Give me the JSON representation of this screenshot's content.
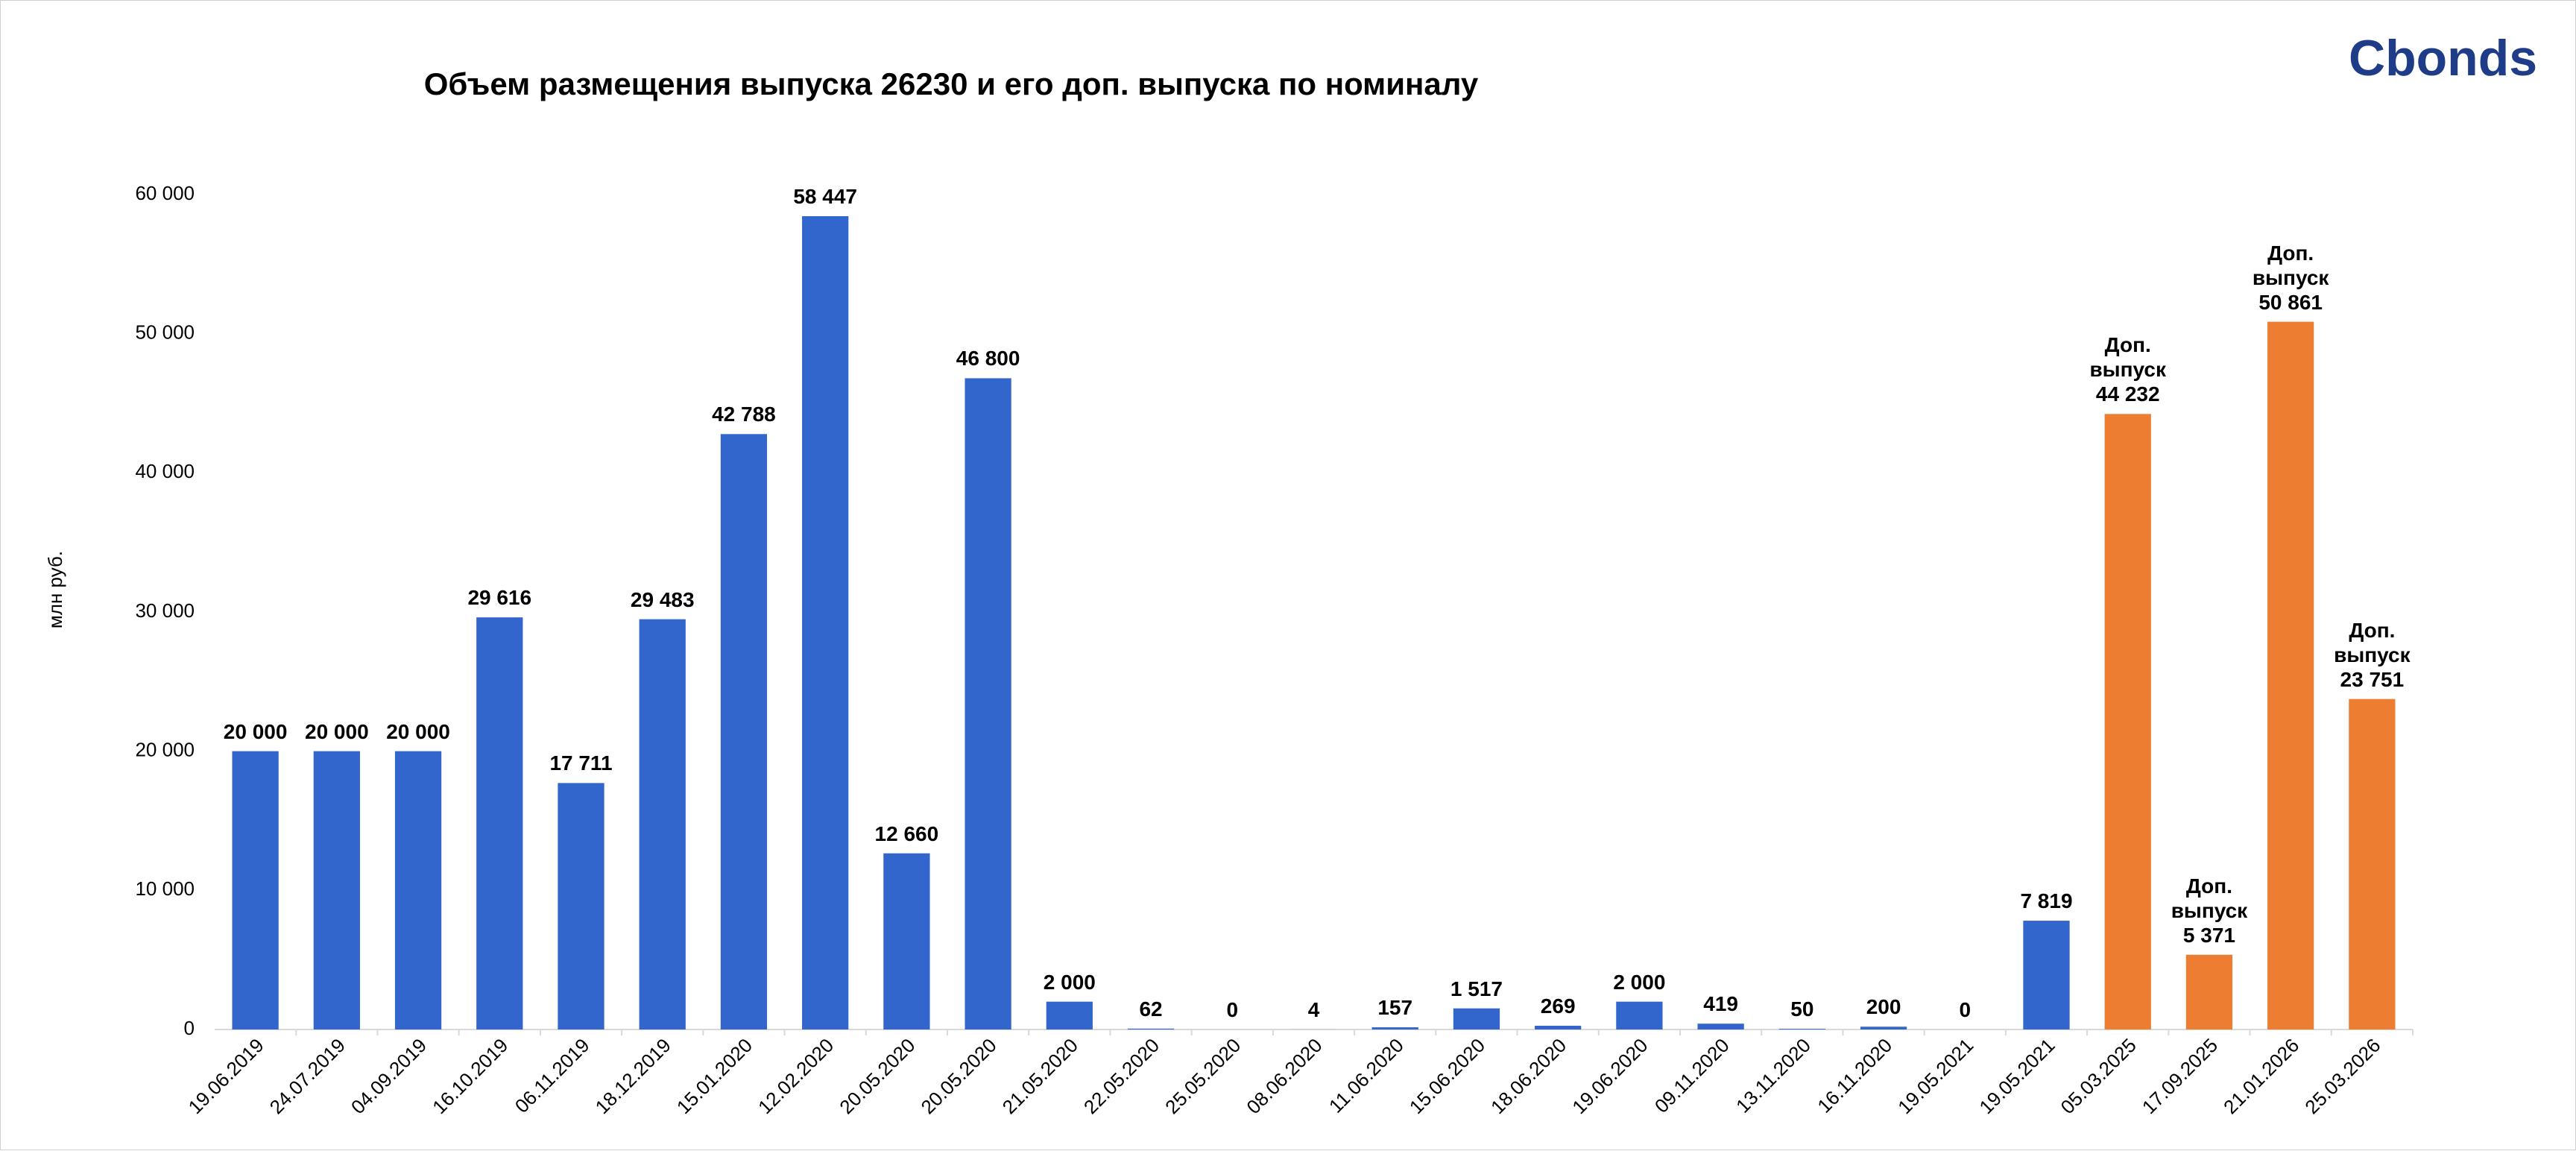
{
  "logo": "Cbonds",
  "chart_data": {
    "type": "bar",
    "title": "Объем размещения выпуска 26230 и его доп. выпуска по номиналу",
    "y_label": "млн руб.",
    "categories": [
      "19.06.2019",
      "24.07.2019",
      "04.09.2019",
      "16.10.2019",
      "06.11.2019",
      "18.12.2019",
      "15.01.2020",
      "12.02.2020",
      "20.05.2020",
      "20.05.2020",
      "21.05.2020",
      "22.05.2020",
      "25.05.2020",
      "08.06.2020",
      "11.06.2020",
      "15.06.2020",
      "18.06.2020",
      "19.06.2020",
      "09.11.2020",
      "13.11.2020",
      "16.11.2020",
      "19.05.2021",
      "19.05.2021",
      "05.03.2025",
      "17.09.2025",
      "21.01.2026",
      "25.03.2026"
    ],
    "values": [
      20000,
      20000,
      20000,
      29616,
      17711,
      29483,
      42788,
      58447,
      12660,
      46800,
      2000,
      62,
      0,
      4,
      157,
      1517,
      269,
      2000,
      419,
      50,
      200,
      0,
      7819,
      44232,
      5371,
      50861,
      23751
    ],
    "value_labels": [
      "20 000",
      "20 000",
      "20 000",
      "29 616",
      "17 711",
      "29 483",
      "42 788",
      "58 447",
      "12 660",
      "46 800",
      "2 000",
      "62",
      "0",
      "4",
      "157",
      "1 517",
      "269",
      "2 000",
      "419",
      "50",
      "200",
      "0",
      "7 819",
      "Доп.\nвыпуск\n44 232",
      "Доп.\nвыпуск\n5 371",
      "Доп.\nвыпуск\n50 861",
      "Доп.\nвыпуск\n23 751"
    ],
    "colors": [
      "#3366cc",
      "#3366cc",
      "#3366cc",
      "#3366cc",
      "#3366cc",
      "#3366cc",
      "#3366cc",
      "#3366cc",
      "#3366cc",
      "#3366cc",
      "#3366cc",
      "#3366cc",
      "#3366cc",
      "#3366cc",
      "#3366cc",
      "#3366cc",
      "#3366cc",
      "#3366cc",
      "#3366cc",
      "#3366cc",
      "#3366cc",
      "#3366cc",
      "#3366cc",
      "#ed7d31",
      "#ed7d31",
      "#ed7d31",
      "#ed7d31"
    ],
    "ylim": [
      0,
      60000
    ],
    "yticks": [
      0,
      {
        "value": 10000,
        "label": "10 000"
      },
      {
        "value": 20000,
        "label": "20 000"
      },
      {
        "value": 30000,
        "label": "30 000"
      },
      {
        "value": 40000,
        "label": "40 000"
      },
      {
        "value": 50000,
        "label": "50 000"
      },
      {
        "value": 60000,
        "label": "60 000"
      }
    ],
    "grid": false
  }
}
